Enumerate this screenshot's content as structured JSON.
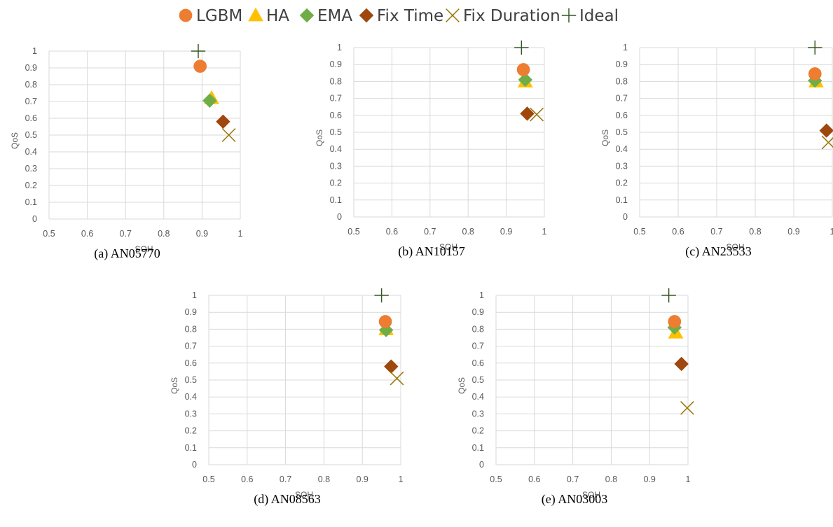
{
  "legend": [
    {
      "name": "LGBM",
      "marker": "circle",
      "color": "#ED7D31"
    },
    {
      "name": "HA",
      "marker": "triangle",
      "color": "#FFC000"
    },
    {
      "name": "EMA",
      "marker": "diamond",
      "color": "#70AD47"
    },
    {
      "name": "Fix Time",
      "marker": "diamond",
      "color": "#9E480E"
    },
    {
      "name": "Fix Duration",
      "marker": "x",
      "color": "#997300"
    },
    {
      "name": "Ideal",
      "marker": "plus",
      "color": "#375623"
    }
  ],
  "chart_data": [
    {
      "type": "scatter",
      "caption": "(a) AN05770",
      "xlabel": "SOH",
      "ylabel": "QoS",
      "xlim": [
        0.5,
        1
      ],
      "ylim": [
        0,
        1
      ],
      "xticks": [
        "0.5",
        "0.6",
        "0.7",
        "0.8",
        "0.9",
        "1"
      ],
      "yticks": [
        "0",
        "0.1",
        "0.2",
        "0.3",
        "0.4",
        "0.5",
        "0.6",
        "0.7",
        "0.8",
        "0.9",
        "1"
      ],
      "grid": true,
      "series": [
        {
          "name": "LGBM",
          "points": [
            [
              0.895,
              0.91
            ]
          ]
        },
        {
          "name": "HA",
          "points": [
            [
              0.925,
              0.72
            ]
          ]
        },
        {
          "name": "EMA",
          "points": [
            [
              0.92,
              0.705
            ]
          ]
        },
        {
          "name": "Fix Time",
          "points": [
            [
              0.955,
              0.58
            ]
          ]
        },
        {
          "name": "Fix Duration",
          "points": [
            [
              0.97,
              0.5
            ]
          ]
        },
        {
          "name": "Ideal",
          "points": [
            [
              0.89,
              1.0
            ]
          ]
        }
      ]
    },
    {
      "type": "scatter",
      "caption": "(b) AN10157",
      "xlabel": "SOH",
      "ylabel": "QoS",
      "xlim": [
        0.5,
        1
      ],
      "ylim": [
        0,
        1
      ],
      "xticks": [
        "0.5",
        "0.6",
        "0.7",
        "0.8",
        "0.9",
        "1"
      ],
      "yticks": [
        "0",
        "0.1",
        "0.2",
        "0.3",
        "0.4",
        "0.5",
        "0.6",
        "0.7",
        "0.8",
        "0.9",
        "1"
      ],
      "grid": true,
      "series": [
        {
          "name": "LGBM",
          "points": [
            [
              0.945,
              0.87
            ]
          ]
        },
        {
          "name": "HA",
          "points": [
            [
              0.95,
              0.8
            ]
          ]
        },
        {
          "name": "EMA",
          "points": [
            [
              0.95,
              0.81
            ]
          ]
        },
        {
          "name": "Fix Time",
          "points": [
            [
              0.955,
              0.61
            ]
          ]
        },
        {
          "name": "Fix Duration",
          "points": [
            [
              0.98,
              0.605
            ]
          ]
        },
        {
          "name": "Ideal",
          "points": [
            [
              0.94,
              1.0
            ]
          ]
        }
      ]
    },
    {
      "type": "scatter",
      "caption": "(c) AN23533",
      "xlabel": "SOH",
      "ylabel": "QoS",
      "xlim": [
        0.5,
        1
      ],
      "ylim": [
        0,
        1
      ],
      "xticks": [
        "0.5",
        "0.6",
        "0.7",
        "0.8",
        "0.9",
        "1"
      ],
      "yticks": [
        "0",
        "0.1",
        "0.2",
        "0.3",
        "0.4",
        "0.5",
        "0.6",
        "0.7",
        "0.8",
        "0.9",
        "1"
      ],
      "grid": true,
      "series": [
        {
          "name": "LGBM",
          "points": [
            [
              0.955,
              0.845
            ]
          ]
        },
        {
          "name": "HA",
          "points": [
            [
              0.958,
              0.8
            ]
          ]
        },
        {
          "name": "EMA",
          "points": [
            [
              0.955,
              0.805
            ]
          ]
        },
        {
          "name": "Fix Time",
          "points": [
            [
              0.985,
              0.51
            ]
          ]
        },
        {
          "name": "Fix Duration",
          "points": [
            [
              0.99,
              0.44
            ]
          ]
        },
        {
          "name": "Ideal",
          "points": [
            [
              0.955,
              1.0
            ]
          ]
        }
      ]
    },
    {
      "type": "scatter",
      "caption": "(d) AN08563",
      "xlabel": "SOH",
      "ylabel": "QoS",
      "xlim": [
        0.5,
        1
      ],
      "ylim": [
        0,
        1
      ],
      "xticks": [
        "0.5",
        "0.6",
        "0.7",
        "0.8",
        "0.9",
        "1"
      ],
      "yticks": [
        "0",
        "0.1",
        "0.2",
        "0.3",
        "0.4",
        "0.5",
        "0.6",
        "0.7",
        "0.8",
        "0.9",
        "1"
      ],
      "grid": true,
      "series": [
        {
          "name": "LGBM",
          "points": [
            [
              0.96,
              0.845
            ]
          ]
        },
        {
          "name": "HA",
          "points": [
            [
              0.962,
              0.8
            ]
          ]
        },
        {
          "name": "EMA",
          "points": [
            [
              0.962,
              0.795
            ]
          ]
        },
        {
          "name": "Fix Time",
          "points": [
            [
              0.975,
              0.58
            ]
          ]
        },
        {
          "name": "Fix Duration",
          "points": [
            [
              0.99,
              0.51
            ]
          ]
        },
        {
          "name": "Ideal",
          "points": [
            [
              0.95,
              1.0
            ]
          ]
        }
      ]
    },
    {
      "type": "scatter",
      "caption": "(e) AN03003",
      "xlabel": "SOH",
      "ylabel": "QoS",
      "xlim": [
        0.5,
        1
      ],
      "ylim": [
        0,
        1
      ],
      "xticks": [
        "0.5",
        "0.6",
        "0.7",
        "0.8",
        "0.9",
        "1"
      ],
      "yticks": [
        "0",
        "0.1",
        "0.2",
        "0.3",
        "0.4",
        "0.5",
        "0.6",
        "0.7",
        "0.8",
        "0.9",
        "1"
      ],
      "grid": true,
      "series": [
        {
          "name": "LGBM",
          "points": [
            [
              0.965,
              0.845
            ]
          ]
        },
        {
          "name": "HA",
          "points": [
            [
              0.968,
              0.78
            ]
          ]
        },
        {
          "name": "EMA",
          "points": [
            [
              0.965,
              0.81
            ]
          ]
        },
        {
          "name": "Fix Time",
          "points": [
            [
              0.983,
              0.595
            ]
          ]
        },
        {
          "name": "Fix Duration",
          "points": [
            [
              0.998,
              0.335
            ]
          ]
        },
        {
          "name": "Ideal",
          "points": [
            [
              0.95,
              1.0
            ]
          ]
        }
      ]
    }
  ]
}
